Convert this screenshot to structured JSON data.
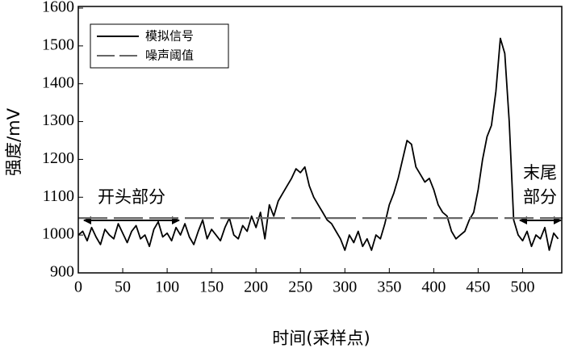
{
  "chart_data": {
    "type": "line",
    "xlabel": "时间(采样点)",
    "ylabel": "强度/mV",
    "xlim": [
      0,
      545
    ],
    "ylim": [
      900,
      1600
    ],
    "xticks": [
      0,
      50,
      100,
      150,
      200,
      250,
      300,
      350,
      400,
      450,
      500
    ],
    "yticks": [
      900,
      1000,
      1100,
      1200,
      1300,
      1400,
      1500,
      1600
    ],
    "legend": "upper left",
    "series": [
      {
        "name": "模拟信号",
        "color": "#000000",
        "style": "solid",
        "x": [
          0,
          5,
          10,
          15,
          20,
          25,
          30,
          35,
          40,
          45,
          50,
          55,
          60,
          65,
          70,
          75,
          80,
          85,
          90,
          95,
          100,
          105,
          110,
          115,
          120,
          125,
          130,
          135,
          140,
          145,
          150,
          155,
          160,
          165,
          170,
          175,
          180,
          185,
          190,
          195,
          200,
          205,
          210,
          215,
          220,
          225,
          230,
          235,
          240,
          245,
          250,
          255,
          260,
          265,
          270,
          275,
          280,
          285,
          290,
          295,
          300,
          305,
          310,
          315,
          320,
          325,
          330,
          335,
          340,
          345,
          350,
          355,
          360,
          365,
          370,
          375,
          380,
          385,
          390,
          395,
          400,
          405,
          410,
          415,
          420,
          425,
          430,
          435,
          440,
          445,
          450,
          455,
          460,
          465,
          470,
          475,
          480,
          485,
          490,
          495,
          500,
          505,
          510,
          515,
          520,
          525,
          530,
          535,
          540
        ],
        "values": [
          1000,
          1010,
          985,
          1020,
          995,
          975,
          1015,
          1000,
          990,
          1030,
          1005,
          980,
          1010,
          1025,
          990,
          1000,
          970,
          1015,
          1035,
          995,
          1005,
          985,
          1020,
          1000,
          1030,
          995,
          975,
          1010,
          1040,
          990,
          1015,
          1000,
          985,
          1020,
          1045,
          1000,
          990,
          1025,
          1010,
          1050,
          1020,
          1060,
          990,
          1080,
          1050,
          1090,
          1110,
          1130,
          1150,
          1175,
          1165,
          1180,
          1130,
          1100,
          1080,
          1060,
          1040,
          1030,
          1010,
          990,
          960,
          1000,
          980,
          1010,
          970,
          990,
          960,
          1000,
          990,
          1030,
          1080,
          1110,
          1150,
          1200,
          1250,
          1240,
          1180,
          1160,
          1140,
          1150,
          1120,
          1080,
          1060,
          1050,
          1010,
          990,
          1000,
          1010,
          1040,
          1060,
          1120,
          1200,
          1260,
          1290,
          1380,
          1520,
          1480,
          1300,
          1040,
          1000,
          985,
          1010,
          970,
          1000,
          990,
          1020,
          960,
          1005,
          990
        ]
      },
      {
        "name": "噪声阈值",
        "color": "#666666",
        "style": "dashed",
        "x": [
          0,
          545
        ],
        "values": [
          1045,
          1045
        ]
      }
    ],
    "annotations": [
      {
        "lines": [
          "开头部分"
        ]
      },
      {
        "lines": [
          "末尾",
          "部分"
        ]
      }
    ]
  }
}
